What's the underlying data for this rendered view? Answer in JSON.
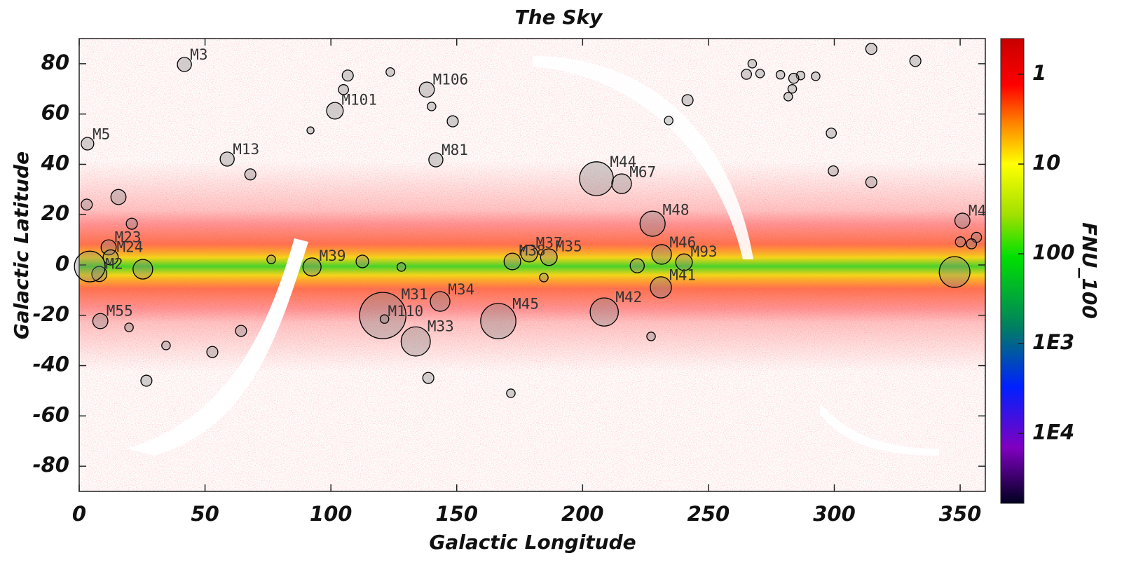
{
  "chart_data": {
    "type": "scatter",
    "title": "The Sky",
    "xlabel": "Galactic Longitude",
    "ylabel": "Galactic Latitude",
    "xlim": [
      0,
      360
    ],
    "ylim": [
      -90,
      90
    ],
    "xticks": [
      0,
      50,
      100,
      150,
      200,
      250,
      300,
      350
    ],
    "yticks": [
      -80,
      -60,
      -40,
      -20,
      0,
      20,
      40,
      60,
      80
    ],
    "color": "#808080",
    "x": [
      41.8,
      3.3,
      58.8,
      101.6,
      138.1,
      141.7,
      205.5,
      215.5,
      227.8,
      231.4,
      240.3,
      231.1,
      208.6,
      166.5,
      143.4,
      120.6,
      121.3,
      133.7,
      92.5,
      178.8,
      172.1,
      186.6,
      8.4,
      11.7,
      12.5,
      8,
      4.2,
      350.9,
      347.8,
      123.6,
      106.7,
      105,
      91.9,
      140,
      148.4,
      68,
      314.7,
      332.2,
      265.1,
      267.4,
      270.5,
      278.6,
      283.3,
      286.6,
      283.9,
      281.7,
      292.6,
      241.7,
      234.2,
      298.8,
      299.6,
      314.7,
      112.5,
      128,
      221.7,
      184.6,
      227.2,
      138.7,
      171.5,
      52.9,
      34.5,
      26.7,
      64.3,
      19.8,
      15.6,
      3,
      20.9,
      25.3,
      76.3,
      350.1,
      356.5,
      354.5
    ],
    "values": [
      79.7,
      48.2,
      42.1,
      61.3,
      69.7,
      41.8,
      34.3,
      32.3,
      16.4,
      4.2,
      1.1,
      -8.9,
      -18.7,
      -22.3,
      -14.5,
      -20.1,
      -21.5,
      -30.4,
      -0.8,
      4.5,
      1.4,
      3.1,
      -22.3,
      7,
      3,
      -3.6,
      -0.6,
      17.6,
      -2.8,
      76.7,
      75.3,
      69.7,
      53.5,
      63,
      57.1,
      36,
      85.9,
      81.1,
      75.8,
      80,
      76.1,
      75.6,
      70,
      75.3,
      74.2,
      66.9,
      75,
      65.5,
      57.4,
      52.4,
      37.4,
      32.9,
      1.4,
      -0.8,
      -0.3,
      -5,
      -28.4,
      -44.9,
      -51,
      -34.6,
      -32,
      -46,
      -26.2,
      -24.8,
      27,
      24,
      16.4,
      -1.7,
      2.2,
      9.2,
      11,
      8.4
    ],
    "sizes": [
      2.8,
      2.5,
      2.8,
      3.3,
      3,
      2.8,
      6.7,
      3.9,
      5,
      3.9,
      3.3,
      4.2,
      5.6,
      7,
      3.9,
      9.2,
      1.7,
      5.8,
      3.6,
      3.3,
      3.3,
      3.3,
      3,
      3,
      3,
      3,
      6.1,
      3,
      6.1,
      1.7,
      2.2,
      2,
      1.4,
      1.7,
      2.2,
      2.2,
      2.2,
      2.2,
      2,
      1.7,
      1.7,
      1.7,
      1.7,
      1.7,
      2,
      1.7,
      1.7,
      2.2,
      1.7,
      2,
      2,
      2.2,
      2.5,
      1.7,
      2.8,
      1.7,
      1.7,
      2.2,
      1.7,
      2.2,
      1.7,
      2.2,
      2.2,
      1.7,
      3,
      2.2,
      2.2,
      3.9,
      1.7,
      2,
      2,
      2
    ],
    "labels": [
      "M3",
      "M5",
      "M13",
      "M101",
      "M106",
      "M81",
      "M44",
      "M67",
      "M48",
      "M46",
      "M93",
      "M41",
      "M42",
      "M45",
      "M34",
      "M31",
      "M110",
      "M33",
      "M39",
      "M37",
      "M38",
      "M35",
      "M55",
      "M23",
      "M24",
      "M2",
      null,
      "M4",
      null,
      null,
      null,
      null,
      null,
      null,
      null,
      null,
      null,
      null,
      null,
      null,
      null,
      null,
      null,
      null,
      null,
      null,
      null,
      null,
      null,
      null,
      null,
      null,
      null,
      null,
      null,
      null,
      null,
      null,
      null,
      null,
      null,
      null,
      null,
      null,
      null,
      null,
      null,
      null,
      null,
      null,
      null,
      null
    ],
    "colorbar": {
      "label": "FNU_100",
      "log": true,
      "lim": [
        0.4,
        60000
      ],
      "ticks": [
        1,
        10,
        100,
        {
          "value": 1000,
          "label": "1E3"
        },
        {
          "value": 10000,
          "label": "1E4"
        }
      ]
    }
  }
}
